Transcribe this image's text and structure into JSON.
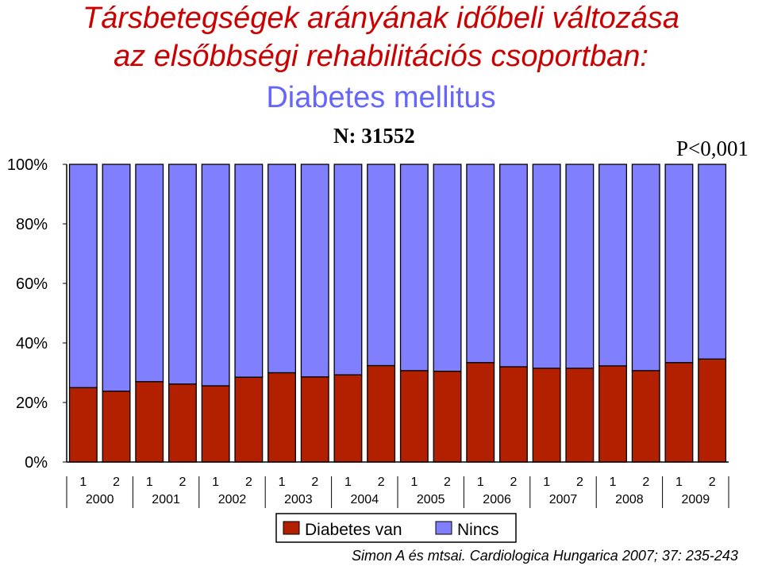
{
  "title": {
    "line1": "Társbetegségek arányának időbeli változása",
    "line2": "az elsőbbségi rehabilitációs csoportban:",
    "line3": "Diabetes mellitus"
  },
  "n_label": "N: 31552",
  "p_label": "P<0,001",
  "citation": "Simon A és mtsai. Cardiologica Hungarica 2007; 37: 235-243",
  "colors": {
    "diabetes": "#b22000",
    "nincs": "#8080ff"
  },
  "chart_data": {
    "type": "bar",
    "stacked": "percent",
    "y_ticks": [
      "0%",
      "20%",
      "40%",
      "60%",
      "80%",
      "100%"
    ],
    "ylim": [
      0,
      100
    ],
    "categories": [
      "1",
      "2",
      "1",
      "2",
      "1",
      "2",
      "1",
      "2",
      "1",
      "2",
      "1",
      "2",
      "1",
      "2",
      "1",
      "2",
      "1",
      "2",
      "1",
      "2"
    ],
    "year_labels": [
      "2000",
      "2001",
      "2002",
      "2003",
      "2004",
      "2005",
      "2006",
      "2007",
      "2008",
      "2009"
    ],
    "series": [
      {
        "name": "Diabetes van",
        "values": [
          25,
          23.8,
          27,
          26.2,
          25.6,
          28.5,
          30,
          28.6,
          29.3,
          32.4,
          30.7,
          30.5,
          33.4,
          32,
          31.5,
          31.5,
          32.3,
          30.7,
          33.4,
          34.6
        ]
      },
      {
        "name": "Nincs",
        "values": [
          75,
          76.2,
          73,
          73.8,
          74.4,
          71.5,
          70,
          71.4,
          70.7,
          67.6,
          69.3,
          69.5,
          66.6,
          68,
          68.5,
          68.5,
          67.7,
          69.3,
          66.6,
          65.4
        ]
      }
    ],
    "legend": "bottom",
    "grid": false
  }
}
